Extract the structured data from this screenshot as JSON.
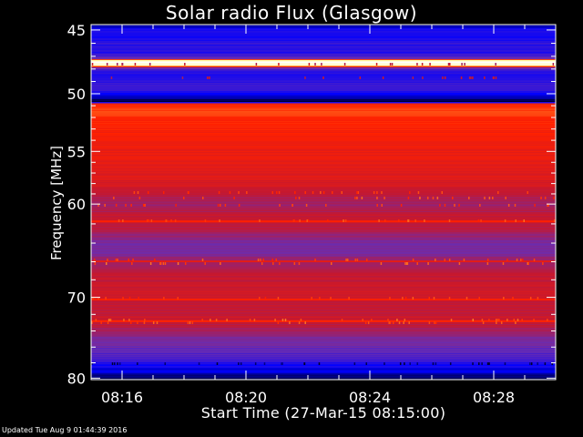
{
  "chart_data": {
    "type": "heatmap",
    "title": "Solar radio Flux (Glasgow)",
    "xlabel": "Start Time (27-Mar-15 08:15:00)",
    "ylabel": "Frequency [MHz]",
    "y_ticks": [
      45,
      50,
      55,
      60,
      70,
      80
    ],
    "y_minor_ticks": [
      46,
      47,
      48,
      49,
      51,
      52,
      53,
      54,
      56,
      57,
      58,
      59,
      62,
      64,
      66,
      68,
      72,
      74,
      76,
      78
    ],
    "x_ticks": [
      "08:16",
      "08:20",
      "08:24",
      "08:28"
    ],
    "x_range": [
      "08:15:00",
      "08:30:00"
    ],
    "y_range_mhz": [
      44.6,
      80.2
    ],
    "y_axis_direction": "frequency increases downward",
    "y_axis_scale": "log",
    "colormap": "dark blue - purple - red - orange - yellow - white",
    "colormap_colors": [
      "#000030",
      "#0000ff",
      "#6a2cb0",
      "#c41830",
      "#ff2000",
      "#ff9030",
      "#ffff80",
      "#ffffff"
    ]
  },
  "footer": "Updated Tue Aug  9 01:44:39 2016"
}
